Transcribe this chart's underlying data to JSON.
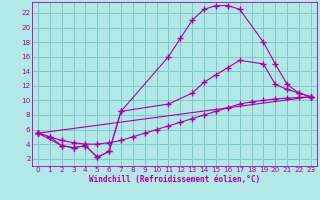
{
  "xlabel": "Windchill (Refroidissement éolien,°C)",
  "bg_color": "#b2e8e8",
  "grid_color": "#7cc8c8",
  "line_color": "#aa00aa",
  "xlim": [
    -0.5,
    23.5
  ],
  "ylim": [
    1,
    23.5
  ],
  "xticks": [
    0,
    1,
    2,
    3,
    4,
    5,
    6,
    7,
    8,
    9,
    10,
    11,
    12,
    13,
    14,
    15,
    16,
    17,
    18,
    19,
    20,
    21,
    22,
    23
  ],
  "yticks": [
    2,
    4,
    6,
    8,
    10,
    12,
    14,
    16,
    18,
    20,
    22
  ],
  "line1_x": [
    0,
    1,
    2,
    3,
    4,
    5,
    6,
    7,
    11,
    12,
    13,
    14,
    15,
    16,
    17,
    19,
    20,
    21,
    22,
    23
  ],
  "line1_y": [
    5.5,
    5.0,
    3.8,
    3.5,
    3.8,
    2.2,
    3.0,
    8.5,
    16.0,
    18.5,
    21.0,
    22.5,
    23.0,
    23.0,
    22.5,
    18.0,
    15.0,
    12.2,
    11.0,
    10.5
  ],
  "line2_x": [
    0,
    2,
    3,
    4,
    5,
    6,
    7,
    11,
    13,
    14,
    15,
    16,
    17,
    19,
    20,
    21,
    22,
    23
  ],
  "line2_y": [
    5.5,
    3.8,
    3.5,
    3.8,
    2.2,
    3.0,
    8.5,
    9.5,
    11.0,
    12.5,
    13.5,
    14.5,
    15.5,
    15.0,
    12.2,
    11.5,
    11.0,
    10.5
  ],
  "line3_x": [
    0,
    1,
    2,
    3,
    4,
    5,
    6,
    7,
    8,
    9,
    10,
    11,
    12,
    13,
    14,
    15,
    16,
    17,
    18,
    19,
    20,
    21,
    22,
    23
  ],
  "line3_y": [
    5.5,
    5.0,
    4.5,
    4.2,
    4.0,
    4.0,
    4.2,
    4.5,
    5.0,
    5.5,
    6.0,
    6.5,
    7.0,
    7.5,
    8.0,
    8.5,
    9.0,
    9.5,
    9.8,
    10.0,
    10.2,
    10.3,
    10.4,
    10.5
  ],
  "line4_x": [
    0,
    23
  ],
  "line4_y": [
    5.5,
    10.5
  ]
}
